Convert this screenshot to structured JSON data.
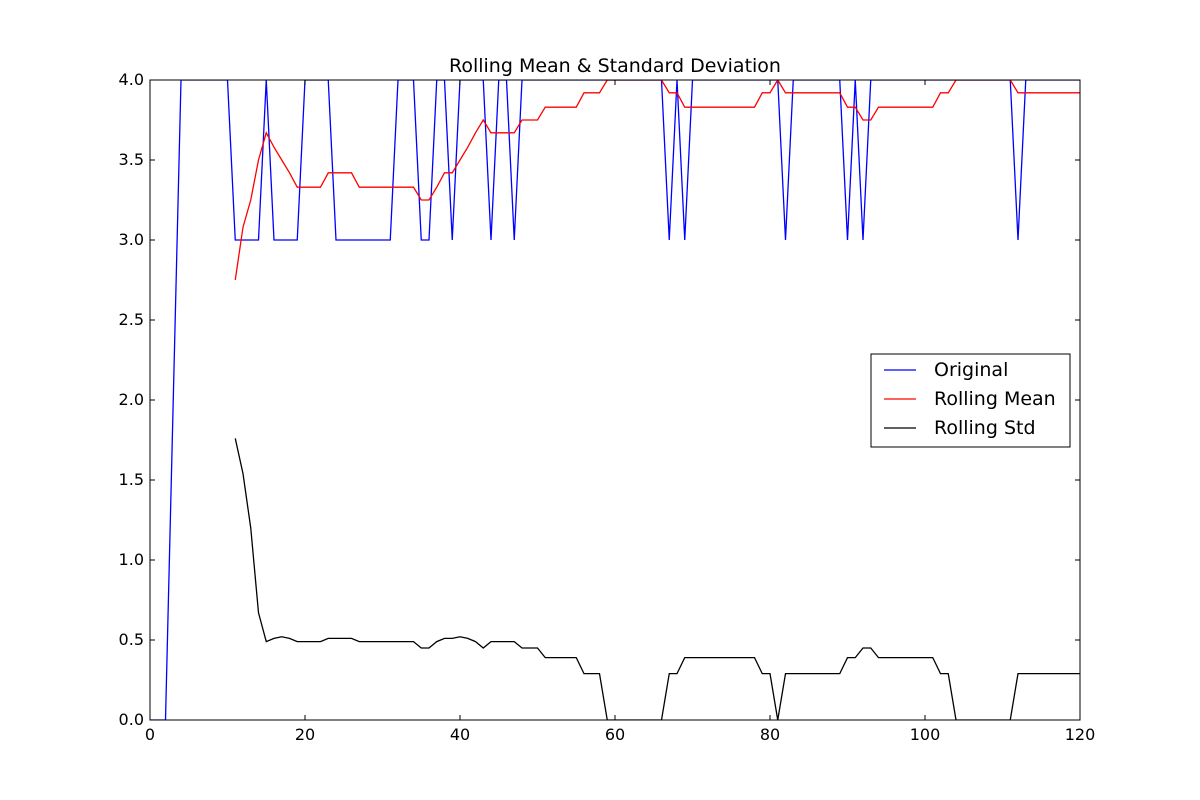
{
  "chart_data": {
    "type": "line",
    "title": "Rolling Mean & Standard Deviation",
    "xlabel": "",
    "ylabel": "",
    "xlim": [
      0,
      120
    ],
    "ylim": [
      0,
      4
    ],
    "xticks": [
      0,
      20,
      40,
      60,
      80,
      100,
      120
    ],
    "xtick_labels": [
      "0",
      "20",
      "40",
      "60",
      "80",
      "100",
      "120"
    ],
    "yticks": [
      0,
      0.5,
      1,
      1.5,
      2,
      2.5,
      3,
      3.5,
      4
    ],
    "ytick_labels": [
      "0.0",
      "0.5",
      "1.0",
      "1.5",
      "2.0",
      "2.5",
      "3.0",
      "3.5",
      "4.0"
    ],
    "grid": false,
    "legend_position": "center-right",
    "series": [
      {
        "name": "Original",
        "color": "#0000ff",
        "x": [
          0,
          1,
          2,
          3,
          4,
          5,
          6,
          7,
          8,
          9,
          10,
          11,
          12,
          13,
          14,
          15,
          16,
          17,
          18,
          19,
          20,
          21,
          22,
          23,
          24,
          25,
          26,
          27,
          28,
          29,
          30,
          31,
          32,
          33,
          34,
          35,
          36,
          37,
          38,
          39,
          40,
          41,
          42,
          43,
          44,
          45,
          46,
          47,
          48,
          49,
          50,
          51,
          52,
          53,
          54,
          55,
          56,
          57,
          58,
          59,
          60,
          61,
          62,
          63,
          64,
          65,
          66,
          67,
          68,
          69,
          70,
          71,
          72,
          73,
          74,
          75,
          76,
          77,
          78,
          79,
          80,
          81,
          82,
          83,
          84,
          85,
          86,
          87,
          88,
          89,
          90,
          91,
          92,
          93,
          94,
          95,
          96,
          97,
          98,
          99,
          100,
          101,
          102,
          103,
          104,
          105,
          106,
          107,
          108,
          109,
          110,
          111,
          112,
          113,
          114,
          115,
          116,
          117,
          118,
          119,
          120
        ],
        "y": [
          0,
          0,
          0,
          2,
          4,
          4,
          4,
          4,
          4,
          4,
          4,
          3,
          3,
          3,
          3,
          4,
          3,
          3,
          3,
          3,
          4,
          4,
          4,
          4,
          3,
          3,
          3,
          3,
          3,
          3,
          3,
          3,
          4,
          4,
          4,
          3,
          3,
          4,
          4,
          3,
          4,
          4,
          4,
          4,
          3,
          4,
          4,
          3,
          4,
          4,
          4,
          4,
          4,
          4,
          4,
          4,
          4,
          4,
          4,
          4,
          4,
          4,
          4,
          4,
          4,
          4,
          4,
          3,
          4,
          3,
          4,
          4,
          4,
          4,
          4,
          4,
          4,
          4,
          4,
          4,
          4,
          4,
          3,
          4,
          4,
          4,
          4,
          4,
          4,
          4,
          3,
          4,
          3,
          4,
          4,
          4,
          4,
          4,
          4,
          4,
          4,
          4,
          4,
          4,
          4,
          4,
          4,
          4,
          4,
          4,
          4,
          4,
          3,
          4,
          4,
          4,
          4,
          4,
          4,
          4,
          4
        ]
      },
      {
        "name": "Rolling Mean",
        "color": "#ff0000",
        "x": [
          11,
          12,
          13,
          14,
          15,
          16,
          17,
          18,
          19,
          20,
          21,
          22,
          23,
          24,
          25,
          26,
          27,
          28,
          29,
          30,
          31,
          32,
          33,
          34,
          35,
          36,
          37,
          38,
          39,
          40,
          41,
          42,
          43,
          44,
          45,
          46,
          47,
          48,
          49,
          50,
          51,
          52,
          53,
          54,
          55,
          56,
          57,
          58,
          59,
          60,
          61,
          62,
          63,
          64,
          65,
          66,
          67,
          68,
          69,
          70,
          71,
          72,
          73,
          74,
          75,
          76,
          77,
          78,
          79,
          80,
          81,
          82,
          83,
          84,
          85,
          86,
          87,
          88,
          89,
          90,
          91,
          92,
          93,
          94,
          95,
          96,
          97,
          98,
          99,
          100,
          101,
          102,
          103,
          104,
          105,
          106,
          107,
          108,
          109,
          110,
          111,
          112,
          113,
          114,
          115,
          116,
          117,
          118,
          119,
          120
        ],
        "y": [
          2.75,
          3.08,
          3.25,
          3.5,
          3.67,
          3.58,
          3.5,
          3.42,
          3.33,
          3.33,
          3.33,
          3.33,
          3.42,
          3.42,
          3.42,
          3.42,
          3.33,
          3.33,
          3.33,
          3.33,
          3.33,
          3.33,
          3.33,
          3.33,
          3.25,
          3.25,
          3.33,
          3.42,
          3.42,
          3.5,
          3.58,
          3.67,
          3.75,
          3.67,
          3.67,
          3.67,
          3.67,
          3.75,
          3.75,
          3.75,
          3.83,
          3.83,
          3.83,
          3.83,
          3.83,
          3.92,
          3.92,
          3.92,
          4.0,
          4.0,
          4.0,
          4.0,
          4.0,
          4.0,
          4.0,
          4.0,
          3.92,
          3.92,
          3.83,
          3.83,
          3.83,
          3.83,
          3.83,
          3.83,
          3.83,
          3.83,
          3.83,
          3.83,
          3.92,
          3.92,
          4.0,
          3.92,
          3.92,
          3.92,
          3.92,
          3.92,
          3.92,
          3.92,
          3.92,
          3.83,
          3.83,
          3.75,
          3.75,
          3.83,
          3.83,
          3.83,
          3.83,
          3.83,
          3.83,
          3.83,
          3.83,
          3.92,
          3.92,
          4.0,
          4.0,
          4.0,
          4.0,
          4.0,
          4.0,
          4.0,
          4.0,
          3.92,
          3.92,
          3.92,
          3.92,
          3.92,
          3.92,
          3.92,
          3.92,
          3.92
        ]
      },
      {
        "name": "Rolling Std",
        "color": "#000000",
        "x": [
          11,
          12,
          13,
          14,
          15,
          16,
          17,
          18,
          19,
          20,
          21,
          22,
          23,
          24,
          25,
          26,
          27,
          28,
          29,
          30,
          31,
          32,
          33,
          34,
          35,
          36,
          37,
          38,
          39,
          40,
          41,
          42,
          43,
          44,
          45,
          46,
          47,
          48,
          49,
          50,
          51,
          52,
          53,
          54,
          55,
          56,
          57,
          58,
          59,
          60,
          61,
          62,
          63,
          64,
          65,
          66,
          67,
          68,
          69,
          70,
          71,
          72,
          73,
          74,
          75,
          76,
          77,
          78,
          79,
          80,
          81,
          82,
          83,
          84,
          85,
          86,
          87,
          88,
          89,
          90,
          91,
          92,
          93,
          94,
          95,
          96,
          97,
          98,
          99,
          100,
          101,
          102,
          103,
          104,
          105,
          106,
          107,
          108,
          109,
          110,
          111,
          112,
          113,
          114,
          115,
          116,
          117,
          118,
          119,
          120
        ],
        "y": [
          1.76,
          1.54,
          1.2,
          0.67,
          0.49,
          0.51,
          0.52,
          0.51,
          0.49,
          0.49,
          0.49,
          0.49,
          0.51,
          0.51,
          0.51,
          0.51,
          0.49,
          0.49,
          0.49,
          0.49,
          0.49,
          0.49,
          0.49,
          0.49,
          0.45,
          0.45,
          0.49,
          0.51,
          0.51,
          0.52,
          0.51,
          0.49,
          0.45,
          0.49,
          0.49,
          0.49,
          0.49,
          0.45,
          0.45,
          0.45,
          0.39,
          0.39,
          0.39,
          0.39,
          0.39,
          0.29,
          0.29,
          0.29,
          0.0,
          0.0,
          0.0,
          0.0,
          0.0,
          0.0,
          0.0,
          0.0,
          0.29,
          0.29,
          0.39,
          0.39,
          0.39,
          0.39,
          0.39,
          0.39,
          0.39,
          0.39,
          0.39,
          0.39,
          0.29,
          0.29,
          0.0,
          0.29,
          0.29,
          0.29,
          0.29,
          0.29,
          0.29,
          0.29,
          0.29,
          0.39,
          0.39,
          0.45,
          0.45,
          0.39,
          0.39,
          0.39,
          0.39,
          0.39,
          0.39,
          0.39,
          0.39,
          0.29,
          0.29,
          0.0,
          0.0,
          0.0,
          0.0,
          0.0,
          0.0,
          0.0,
          0.0,
          0.29,
          0.29,
          0.29,
          0.29,
          0.29,
          0.29,
          0.29,
          0.29,
          0.29
        ]
      }
    ]
  }
}
